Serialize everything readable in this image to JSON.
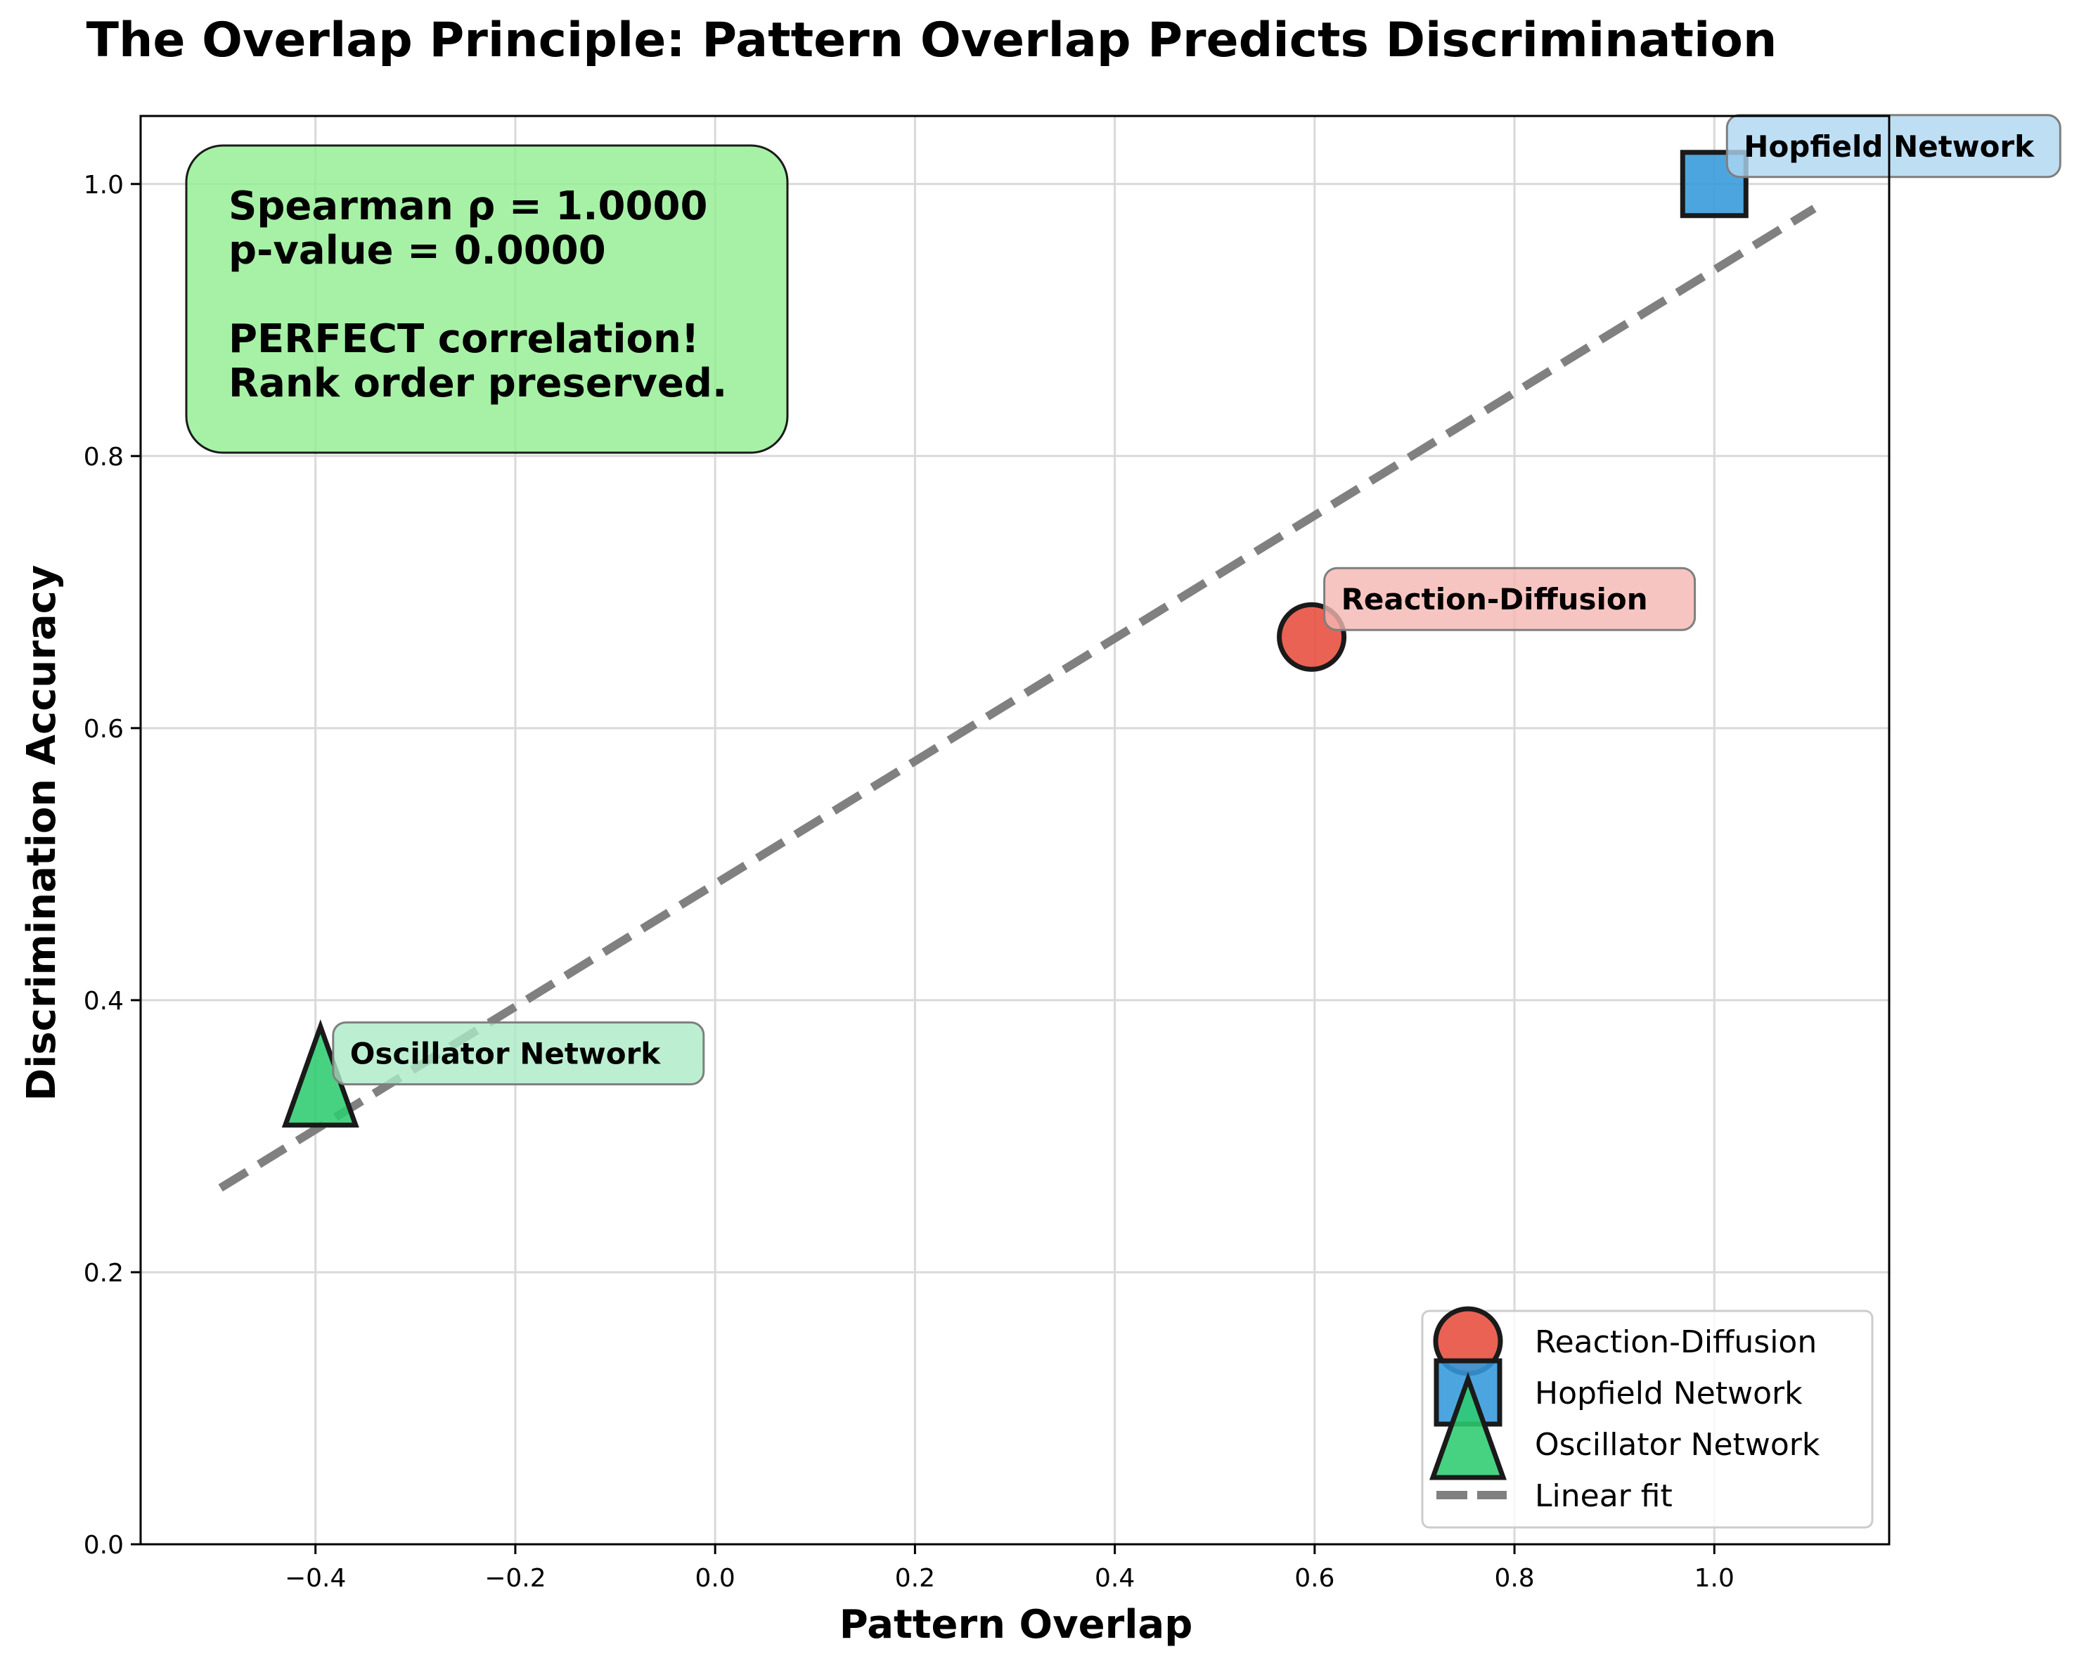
{
  "chart_data": {
    "type": "scatter",
    "title": "The Overlap Principle: Pattern Overlap Predicts Discrimination",
    "xlabel": "Pattern Overlap",
    "ylabel": "Discrimination Accuracy",
    "xlim": [
      -0.575,
      1.175
    ],
    "ylim": [
      0.0,
      1.05
    ],
    "xticks": [
      -0.4,
      -0.2,
      0.0,
      0.2,
      0.4,
      0.6,
      0.8,
      1.0
    ],
    "xtick_labels": [
      "−0.4",
      "−0.2",
      "0.0",
      "0.2",
      "0.4",
      "0.6",
      "0.8",
      "1.0"
    ],
    "yticks": [
      0.0,
      0.2,
      0.4,
      0.6,
      0.8,
      1.0
    ],
    "ytick_labels": [
      "0.0",
      "0.2",
      "0.4",
      "0.6",
      "0.8",
      "1.0"
    ],
    "grid": true,
    "legend_position": "lower-right",
    "series": [
      {
        "name": "Reaction-Diffusion",
        "marker": "circle",
        "color": "#e74c3c",
        "x": 0.597,
        "y": 0.667,
        "annotation": "Reaction-Diffusion",
        "annotation_bg": "#f5b7b1"
      },
      {
        "name": "Hopfield Network",
        "marker": "square",
        "color": "#3498db",
        "x": 1.0,
        "y": 1.0,
        "annotation": "Hopfield Network",
        "annotation_bg": "#aed6f1"
      },
      {
        "name": "Oscillator Network",
        "marker": "triangle",
        "color": "#2ecc71",
        "x": -0.395,
        "y": 0.333,
        "annotation": "Oscillator Network",
        "annotation_bg": "#abebc6"
      }
    ],
    "fit_line": {
      "name": "Linear fit",
      "color": "#808080",
      "style": "dashed",
      "x": [
        -0.495,
        1.1
      ],
      "y": [
        0.262,
        0.982
      ]
    },
    "stats_box": {
      "lines": [
        "Spearman ρ = 1.0000",
        "p-value = 0.0000",
        "",
        "PERFECT correlation!",
        "Rank order preserved."
      ],
      "bg_color": "#90ee90"
    },
    "legend": [
      "Reaction-Diffusion",
      "Hopfield Network",
      "Oscillator Network",
      "Linear fit"
    ]
  }
}
